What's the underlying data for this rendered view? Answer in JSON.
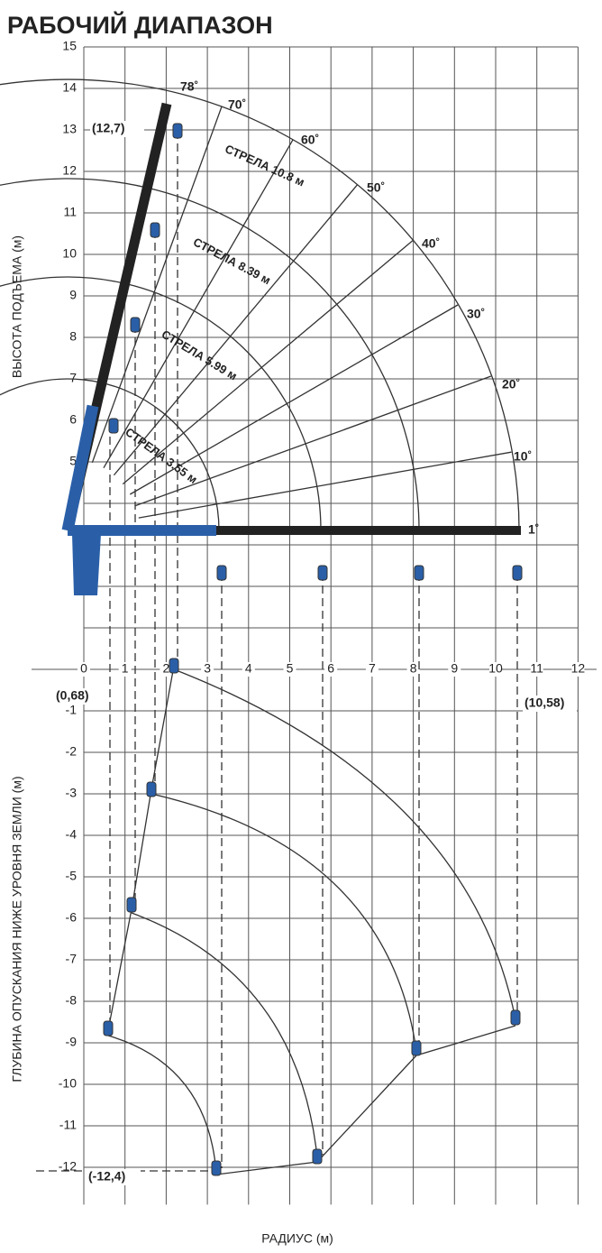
{
  "title": "РАБОЧИЙ ДИАПАЗОН",
  "y_label_upper": "ВЫСОТА ПОДЪЕМА (м)",
  "y_label_lower": "ГЛУБИНА ОПУСКАНИЯ НИЖЕ УРОВНЯ ЗЕМЛИ (м)",
  "x_label": "РАДИУС (м)",
  "axes": {
    "xticks": [
      0,
      1,
      2,
      3,
      4,
      5,
      6,
      7,
      8,
      9,
      10,
      11,
      12
    ],
    "yticks": [
      15,
      14,
      13,
      12,
      11,
      10,
      9,
      8,
      7,
      6,
      5,
      -1,
      -2,
      -3,
      -4,
      -5,
      -6,
      -7,
      -8,
      -9,
      -10,
      -11,
      -12
    ]
  },
  "angles": [
    "78˚",
    "70˚",
    "60˚",
    "50˚",
    "40˚",
    "30˚",
    "20˚",
    "10˚",
    "1˚"
  ],
  "booms": [
    "СТРЕЛА 10.8 м",
    "СТРЕЛА 8.39 м",
    "СТРЕЛА 5.99 м",
    "СТРЕЛА 3.55 м"
  ],
  "points": [
    "(12,7)",
    "(0,68)",
    "(10,58)",
    "(-12,4)"
  ]
}
